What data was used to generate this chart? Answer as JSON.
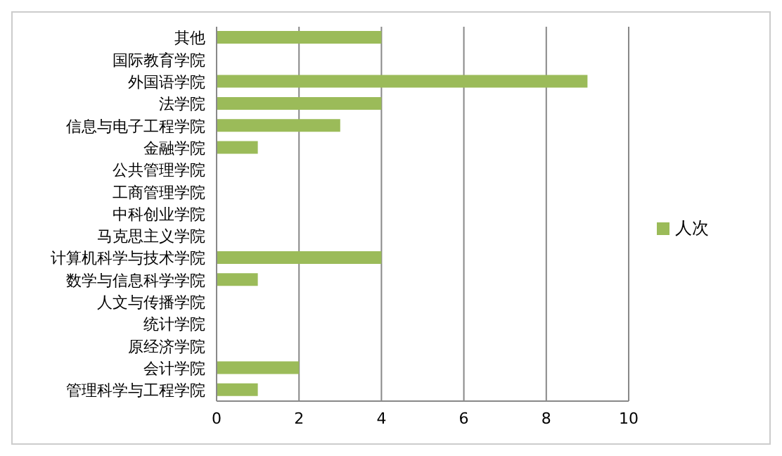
{
  "chart_data": {
    "type": "bar",
    "orientation": "horizontal",
    "categories": [
      "其他",
      "国际教育学院",
      "外国语学院",
      "法学院",
      "信息与电子工程学院",
      "金融学院",
      "公共管理学院",
      "工商管理学院",
      "中科创业学院",
      "马克思主义学院",
      "计算机科学与技术学院",
      "数学与信息科学学院",
      "人文与传播学院",
      "统计学院",
      "原经济学院",
      "会计学院",
      "管理科学与工程学院"
    ],
    "series": [
      {
        "name": "人次",
        "color": "#9bbb59",
        "values": [
          4,
          0,
          9,
          4,
          3,
          1,
          0,
          0,
          0,
          0,
          4,
          1,
          0,
          0,
          0,
          2,
          1
        ]
      }
    ],
    "xlim": [
      0,
      10
    ],
    "xticks": [
      0,
      2,
      4,
      6,
      8,
      10
    ],
    "grid": "x",
    "legend": "right"
  }
}
